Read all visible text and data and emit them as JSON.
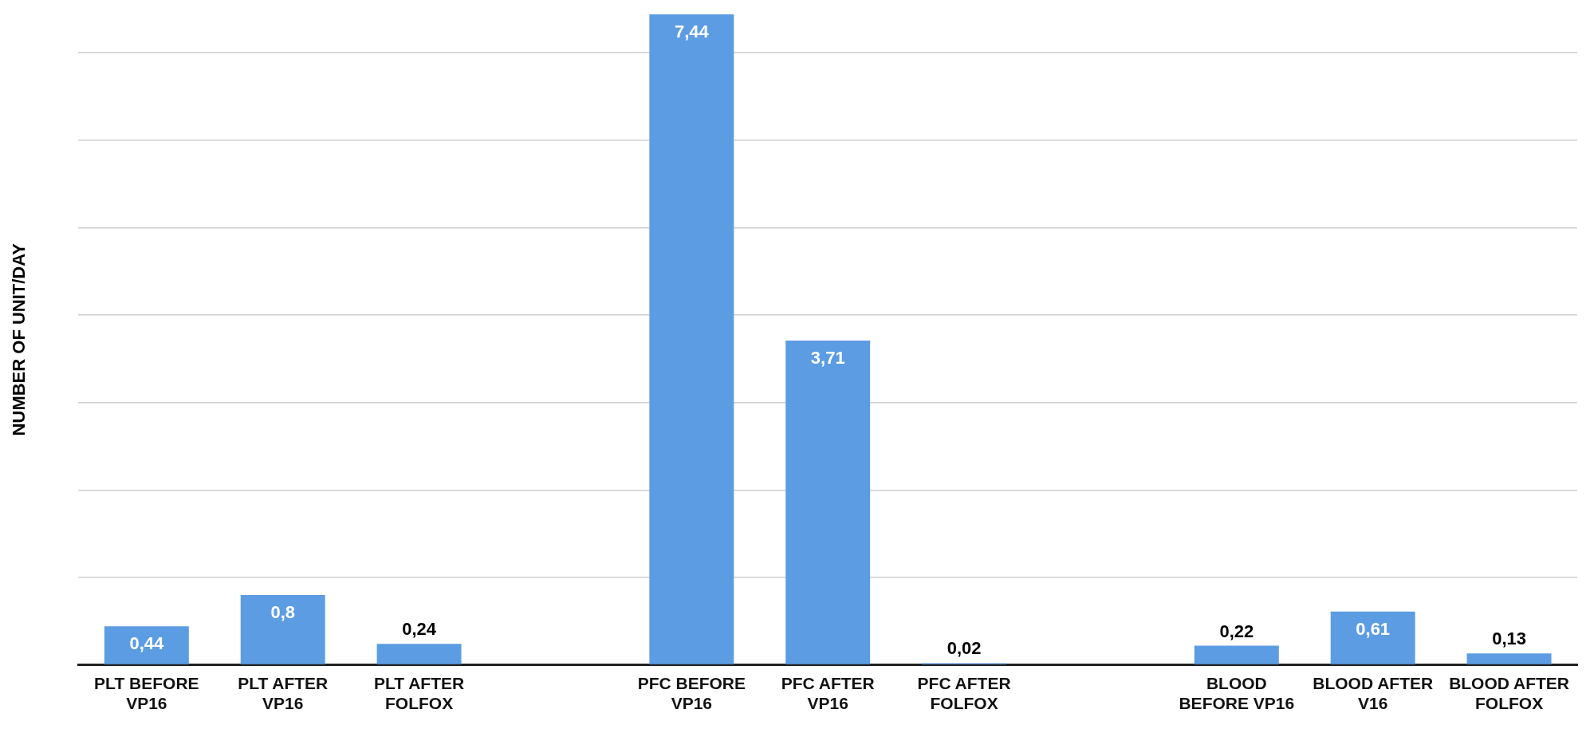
{
  "chart_data": {
    "type": "bar",
    "ylabel": "NUMBER OF UNIT/DAY",
    "categories": [
      "PLT BEFORE VP16",
      "PLT AFTER VP16",
      "PLT AFTER FOLFOX",
      null,
      "PFC BEFORE VP16",
      "PFC AFTER VP16",
      "PFC AFTER FOLFOX",
      null,
      "BLOOD BEFORE VP16",
      "BLOOD AFTER V16",
      "BLOOD AFTER FOLFOX"
    ],
    "values": [
      0.44,
      0.8,
      0.24,
      null,
      7.44,
      3.71,
      0.02,
      null,
      0.22,
      0.61,
      0.13
    ],
    "value_labels": [
      "0,44",
      "0,8",
      "0,24",
      null,
      "7,44",
      "3,71",
      "0,02",
      null,
      "0,22",
      "0,61",
      "0,13"
    ],
    "color": "#5c9ce2",
    "ylim": [
      0,
      7.44
    ],
    "yticks": [
      {
        "value": 0,
        "label": null
      },
      {
        "value": 1,
        "label": null
      },
      {
        "value": 2,
        "label": null
      },
      {
        "value": 3,
        "label": null
      },
      {
        "value": 4,
        "label": null
      },
      {
        "value": 5,
        "label": null
      },
      {
        "value": 6,
        "label": null
      },
      {
        "value": 7,
        "label": null
      }
    ],
    "grid": "y",
    "legend": false,
    "tick_labels": "x"
  }
}
